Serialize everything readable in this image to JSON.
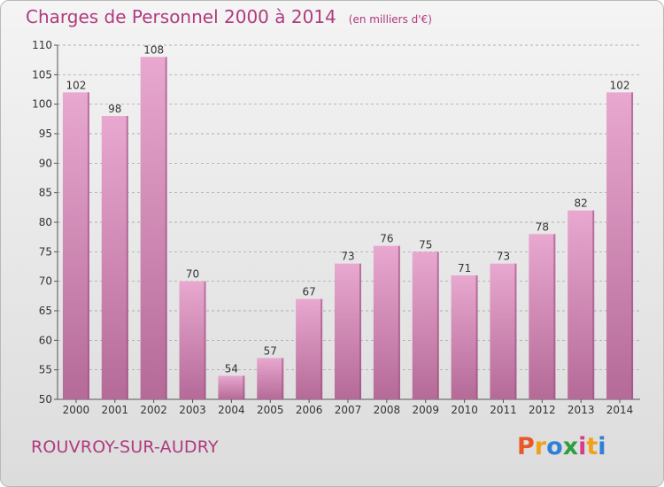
{
  "header": {
    "title": "Charges de Personnel 2000 à 2014",
    "subtitle": "(en milliers d'€)"
  },
  "footer": {
    "city": "ROUVROY-SUR-AUDRY",
    "brand": "Proxiti",
    "brand_colors": [
      "#e8582b",
      "#f0a11a",
      "#2e7fd8",
      "#2e9e3e",
      "#d93a8c",
      "#f0a11a",
      "#2e7fd8"
    ]
  },
  "colors": {
    "bar_top": "#e8a8cf",
    "bar_bottom": "#b56a98",
    "bar_side": "#9c4f80",
    "accent": "#b03a7e",
    "grid": "#9a9a9a"
  },
  "chart_data": {
    "type": "bar",
    "categories": [
      "2000",
      "2001",
      "2002",
      "2003",
      "2004",
      "2005",
      "2006",
      "2007",
      "2008",
      "2009",
      "2010",
      "2011",
      "2012",
      "2013",
      "2014"
    ],
    "values": [
      102,
      98,
      108,
      70,
      54,
      57,
      67,
      73,
      76,
      75,
      71,
      73,
      78,
      82,
      102
    ],
    "ylim": [
      50,
      110
    ],
    "yticks": [
      50,
      55,
      60,
      65,
      70,
      75,
      80,
      85,
      90,
      95,
      100,
      105,
      110
    ],
    "grid": "horizontal dashed",
    "xlabel": "",
    "ylabel": ""
  }
}
